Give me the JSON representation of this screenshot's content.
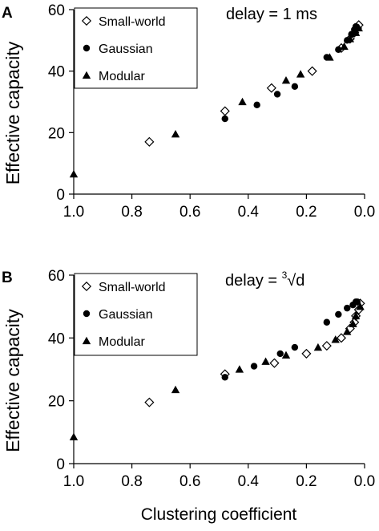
{
  "chart_data": [
    {
      "panel_label": "A",
      "type": "scatter",
      "annotation": "delay = 1 ms",
      "xlabel": "",
      "ylabel": "Effective capacity",
      "xlim": [
        1.0,
        0.0
      ],
      "ylim": [
        0,
        60
      ],
      "x_reversed": true,
      "xticks": [
        "1.0",
        "0.8",
        "0.6",
        "0.4",
        "0.2",
        "0.0"
      ],
      "yticks": [
        "0",
        "20",
        "40",
        "60"
      ],
      "grid": false,
      "legend_position": "top-left",
      "series": [
        {
          "name": "Small-world",
          "marker": "open-diamond",
          "points": [
            [
              0.74,
              17
            ],
            [
              0.48,
              27
            ],
            [
              0.32,
              34.5
            ],
            [
              0.18,
              40
            ],
            [
              0.08,
              47.5
            ],
            [
              0.05,
              50.5
            ],
            [
              0.035,
              52.5
            ],
            [
              0.025,
              54
            ],
            [
              0.02,
              55
            ]
          ]
        },
        {
          "name": "Gaussian",
          "marker": "filled-circle",
          "points": [
            [
              0.48,
              24.5
            ],
            [
              0.37,
              29
            ],
            [
              0.3,
              32.5
            ],
            [
              0.24,
              35
            ],
            [
              0.13,
              44.5
            ],
            [
              0.09,
              47
            ],
            [
              0.06,
              50
            ],
            [
              0.045,
              52
            ],
            [
              0.035,
              53.5
            ],
            [
              0.03,
              54.5
            ]
          ]
        },
        {
          "name": "Modular",
          "marker": "filled-triangle",
          "points": [
            [
              1.0,
              6.5
            ],
            [
              0.65,
              19.5
            ],
            [
              0.42,
              30
            ],
            [
              0.27,
              37
            ],
            [
              0.22,
              39
            ],
            [
              0.12,
              44.5
            ],
            [
              0.07,
              48
            ],
            [
              0.05,
              50.5
            ],
            [
              0.03,
              52.5
            ],
            [
              0.02,
              54
            ]
          ]
        }
      ]
    },
    {
      "panel_label": "B",
      "type": "scatter",
      "annotation_prefix": "delay = ",
      "annotation_sup": "3",
      "annotation_suffix": "√d",
      "xlabel": "Clustering coefficient",
      "ylabel": "Effective capacity",
      "xlim": [
        1.0,
        0.0
      ],
      "ylim": [
        0,
        60
      ],
      "x_reversed": true,
      "xticks": [
        "1.0",
        "0.8",
        "0.6",
        "0.4",
        "0.2",
        "0.0"
      ],
      "yticks": [
        "0",
        "20",
        "40",
        "60"
      ],
      "grid": false,
      "legend_position": "top-left",
      "series": [
        {
          "name": "Small-world",
          "marker": "open-diamond",
          "points": [
            [
              0.74,
              19.5
            ],
            [
              0.48,
              28.5
            ],
            [
              0.31,
              32
            ],
            [
              0.2,
              35
            ],
            [
              0.13,
              37.5
            ],
            [
              0.08,
              40
            ],
            [
              0.05,
              43
            ],
            [
              0.035,
              45
            ],
            [
              0.03,
              47
            ],
            [
              0.02,
              49
            ],
            [
              0.015,
              51
            ]
          ]
        },
        {
          "name": "Gaussian",
          "marker": "filled-circle",
          "points": [
            [
              0.48,
              27.5
            ],
            [
              0.38,
              31
            ],
            [
              0.29,
              35
            ],
            [
              0.24,
              37
            ],
            [
              0.13,
              45
            ],
            [
              0.09,
              47.5
            ],
            [
              0.06,
              49.5
            ],
            [
              0.04,
              50.5
            ],
            [
              0.03,
              51.5
            ],
            [
              0.025,
              51.5
            ]
          ]
        },
        {
          "name": "Modular",
          "marker": "filled-triangle",
          "points": [
            [
              1.0,
              8.5
            ],
            [
              0.65,
              23.5
            ],
            [
              0.43,
              30
            ],
            [
              0.34,
              32.5
            ],
            [
              0.27,
              34.5
            ],
            [
              0.16,
              37
            ],
            [
              0.1,
              39.5
            ],
            [
              0.06,
              42
            ],
            [
              0.04,
              44.5
            ],
            [
              0.03,
              47
            ],
            [
              0.015,
              50
            ]
          ]
        }
      ]
    }
  ]
}
